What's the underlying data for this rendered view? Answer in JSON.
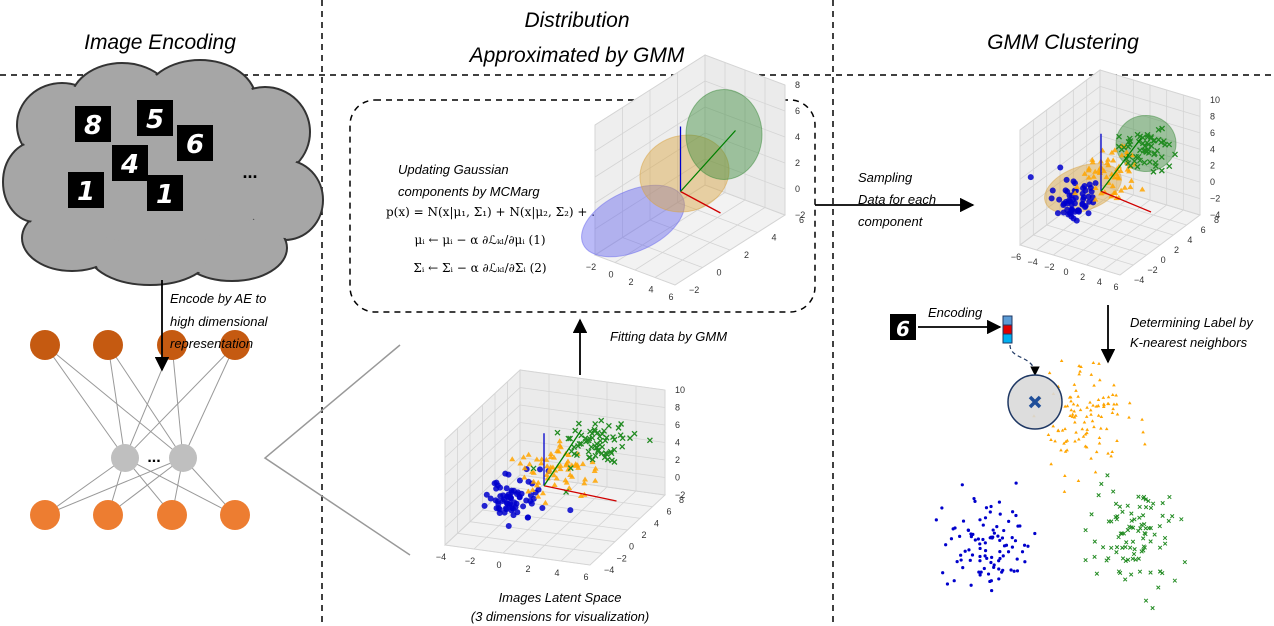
{
  "headers": {
    "image_encoding": "Image Encoding",
    "distribution": [
      "Distribution",
      "Approximated by GMM"
    ],
    "gmm_clustering": "GMM Clustering"
  },
  "digits": [
    "8",
    "5",
    "6",
    "4",
    "1",
    "1"
  ],
  "ellipsis": "...",
  "encode_note": [
    "Encode by AE to",
    "high dimensional",
    "representation"
  ],
  "update_note": [
    "Updating Gaussian",
    "components by MCMarg"
  ],
  "formulas": [
    "p(x) = N(x|μ₁, Σ₁) + N(x|μ₂, Σ₂) + ...",
    "μᵢ ← μᵢ − α ∂ℒₖₗ/∂μᵢ (1)",
    "Σᵢ ← Σᵢ − α ∂ℒₖₗ/∂Σᵢ (2)"
  ],
  "fitting_note": "Fitting data by GMM",
  "latent_caption": [
    "Images Latent Space",
    "(3 dimensions for visualization)"
  ],
  "sampling_note": [
    "Sampling",
    "Data for each",
    "component"
  ],
  "encoding_note": "Encoding",
  "query_digit": "6",
  "knn_note": [
    "Determining Label by",
    "K-nearest neighbors"
  ],
  "plots": [
    {
      "xticks": [
        "−2",
        "0",
        "2",
        "4",
        "6"
      ],
      "yticks": [
        "6",
        "4",
        "2",
        "0",
        "−2"
      ],
      "zticks": [
        "8",
        "6",
        "4",
        "2",
        "0",
        "−2"
      ]
    },
    {
      "xticks": [
        "−4",
        "−2",
        "0",
        "2",
        "4",
        "6"
      ],
      "yticks": [
        "8",
        "6",
        "4",
        "2",
        "0",
        "−2",
        "−4"
      ],
      "zticks": [
        "10",
        "8",
        "6",
        "4",
        "2",
        "0",
        "−2"
      ]
    },
    {
      "xticks": [
        "−6",
        "−4",
        "−2",
        "0",
        "2",
        "4",
        "6"
      ],
      "yticks": [
        "8",
        "6",
        "4",
        "2",
        "0",
        "−2",
        "−4"
      ],
      "zticks": [
        "10",
        "8",
        "6",
        "4",
        "2",
        "0",
        "−2",
        "−4"
      ]
    }
  ]
}
